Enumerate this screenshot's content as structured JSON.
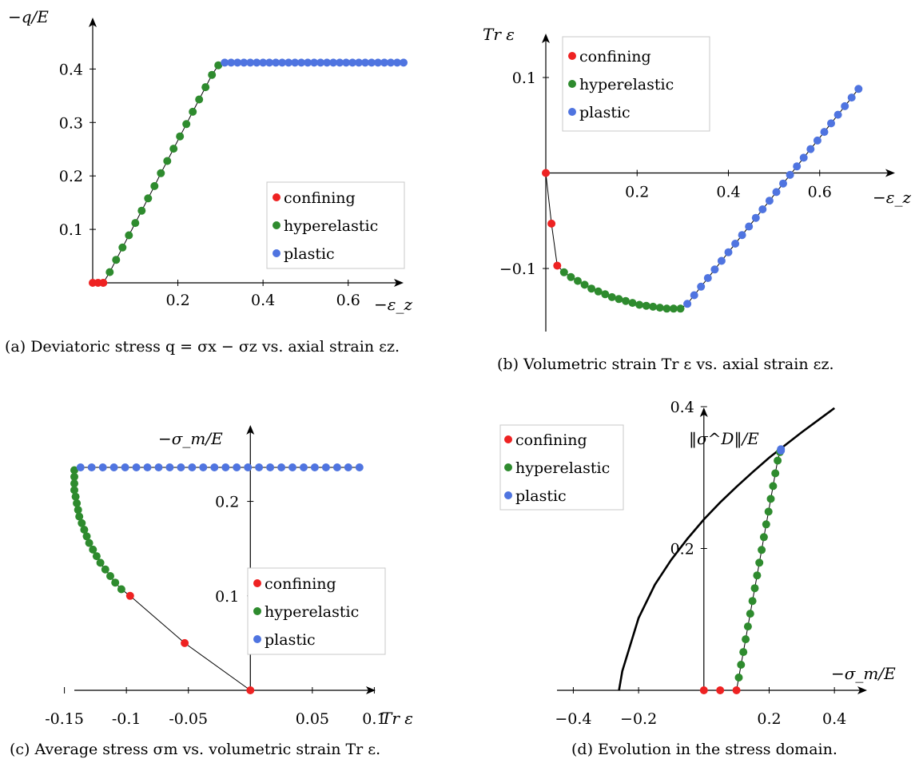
{
  "colors": {
    "confining": "#ee2222",
    "hyperelastic": "#2e8b2e",
    "plastic": "#4f74e0",
    "curve": "#000000"
  },
  "chart_data": [
    {
      "id": "a",
      "type": "scatter",
      "xlabel": "−ε_z",
      "ylabel": "−q/E",
      "xlim": [
        0,
        0.73
      ],
      "ylim": [
        0,
        0.42
      ],
      "xticks": [
        0.2,
        0.4,
        0.6
      ],
      "yticks": [
        0.1,
        0.2,
        0.3,
        0.4
      ],
      "xtick_labels": [
        "0.2",
        "0.4",
        "0.6"
      ],
      "ytick_labels": [
        "0.1",
        "0.2",
        "0.3",
        "0.4"
      ],
      "legend_position": "right",
      "caption": "(a) Deviatoric stress q = σx − σz vs. axial strain εz.",
      "series": [
        {
          "name": "confining",
          "color_key": "confining",
          "points": [
            [
              0,
              0
            ],
            [
              0.0125,
              0
            ],
            [
              0.025,
              0
            ]
          ]
        },
        {
          "name": "hyperelastic",
          "color_key": "hyperelastic",
          "points": [
            [
              0.04,
              0.02
            ],
            [
              0.055,
              0.043
            ],
            [
              0.07,
              0.066
            ],
            [
              0.085,
              0.089
            ],
            [
              0.1,
              0.112
            ],
            [
              0.115,
              0.135
            ],
            [
              0.13,
              0.158
            ],
            [
              0.145,
              0.181
            ],
            [
              0.16,
              0.205
            ],
            [
              0.175,
              0.228
            ],
            [
              0.19,
              0.251
            ],
            [
              0.205,
              0.274
            ],
            [
              0.22,
              0.297
            ],
            [
              0.235,
              0.32
            ],
            [
              0.25,
              0.343
            ],
            [
              0.265,
              0.366
            ],
            [
              0.28,
              0.389
            ],
            [
              0.295,
              0.407
            ]
          ]
        },
        {
          "name": "plastic",
          "color_key": "plastic",
          "points": [
            [
              0.31,
              0.412
            ],
            [
              0.325,
              0.412
            ],
            [
              0.34,
              0.412
            ],
            [
              0.355,
              0.412
            ],
            [
              0.37,
              0.412
            ],
            [
              0.385,
              0.412
            ],
            [
              0.4,
              0.412
            ],
            [
              0.415,
              0.412
            ],
            [
              0.43,
              0.412
            ],
            [
              0.445,
              0.412
            ],
            [
              0.46,
              0.412
            ],
            [
              0.475,
              0.412
            ],
            [
              0.49,
              0.412
            ],
            [
              0.505,
              0.412
            ],
            [
              0.52,
              0.412
            ],
            [
              0.535,
              0.412
            ],
            [
              0.55,
              0.412
            ],
            [
              0.565,
              0.412
            ],
            [
              0.58,
              0.412
            ],
            [
              0.595,
              0.412
            ],
            [
              0.61,
              0.412
            ],
            [
              0.625,
              0.412
            ],
            [
              0.64,
              0.412
            ],
            [
              0.655,
              0.412
            ],
            [
              0.67,
              0.412
            ],
            [
              0.685,
              0.412
            ],
            [
              0.7,
              0.412
            ],
            [
              0.715,
              0.412
            ],
            [
              0.73,
              0.412
            ]
          ]
        }
      ]
    },
    {
      "id": "b",
      "type": "scatter",
      "xlabel": "−ε_z",
      "ylabel": "Tr ε",
      "xlim": [
        0,
        0.73
      ],
      "ylim": [
        -0.156,
        0.1
      ],
      "xticks": [
        0.2,
        0.4,
        0.6
      ],
      "yticks": [
        -0.1,
        0.1
      ],
      "xtick_labels": [
        "0.2",
        "0.4",
        "0.6"
      ],
      "ytick_labels": [
        "−0.1",
        "0.1"
      ],
      "legend_position": "top-left",
      "caption": "(b) Volumetric strain Tr ε vs. axial strain εz.",
      "series": [
        {
          "name": "confining",
          "color_key": "confining",
          "points": [
            [
              0,
              0
            ],
            [
              0.0125,
              -0.053
            ],
            [
              0.025,
              -0.097
            ]
          ]
        },
        {
          "name": "hyperelastic",
          "color_key": "hyperelastic",
          "points": [
            [
              0.04,
              -0.104
            ],
            [
              0.055,
              -0.109
            ],
            [
              0.07,
              -0.113
            ],
            [
              0.085,
              -0.117
            ],
            [
              0.1,
              -0.121
            ],
            [
              0.115,
              -0.124
            ],
            [
              0.13,
              -0.127
            ],
            [
              0.145,
              -0.13
            ],
            [
              0.16,
              -0.132
            ],
            [
              0.175,
              -0.134
            ],
            [
              0.19,
              -0.136
            ],
            [
              0.205,
              -0.138
            ],
            [
              0.22,
              -0.139
            ],
            [
              0.235,
              -0.14
            ],
            [
              0.25,
              -0.141
            ],
            [
              0.265,
              -0.142
            ],
            [
              0.28,
              -0.142
            ],
            [
              0.295,
              -0.142
            ]
          ]
        },
        {
          "name": "plastic",
          "color_key": "plastic",
          "points": [
            [
              0.31,
              -0.137
            ],
            [
              0.325,
              -0.128
            ],
            [
              0.34,
              -0.119
            ],
            [
              0.355,
              -0.11
            ],
            [
              0.37,
              -0.101
            ],
            [
              0.385,
              -0.092
            ],
            [
              0.4,
              -0.083
            ],
            [
              0.415,
              -0.074
            ],
            [
              0.43,
              -0.065
            ],
            [
              0.445,
              -0.056
            ],
            [
              0.46,
              -0.047
            ],
            [
              0.475,
              -0.038
            ],
            [
              0.49,
              -0.029
            ],
            [
              0.505,
              -0.02
            ],
            [
              0.52,
              -0.011
            ],
            [
              0.535,
              -0.002
            ],
            [
              0.55,
              0.007
            ],
            [
              0.565,
              0.016
            ],
            [
              0.58,
              0.025
            ],
            [
              0.595,
              0.034
            ],
            [
              0.61,
              0.043
            ],
            [
              0.625,
              0.052
            ],
            [
              0.64,
              0.061
            ],
            [
              0.655,
              0.07
            ],
            [
              0.67,
              0.079
            ],
            [
              0.685,
              0.088
            ]
          ]
        }
      ]
    },
    {
      "id": "c",
      "type": "scatter",
      "xlabel": "Tr ε",
      "ylabel": "−σ_m/E",
      "xlim": [
        -0.142,
        0.092
      ],
      "ylim": [
        0,
        0.236
      ],
      "xticks": [
        -0.15,
        -0.1,
        -0.05,
        0.05,
        0.1
      ],
      "yticks": [
        0.1,
        0.2
      ],
      "xtick_labels": [
        "-0.15",
        "-0.1",
        "-0.05",
        "0.05",
        "0.1"
      ],
      "ytick_labels": [
        "0.1",
        "0.2"
      ],
      "legend_position": "bottom-right",
      "caption": "(c) Average stress σm vs. volumetric strain Tr ε.",
      "series": [
        {
          "name": "confining",
          "color_key": "confining",
          "points": [
            [
              0,
              0
            ],
            [
              -0.053,
              0.05
            ],
            [
              -0.097,
              0.1
            ]
          ]
        },
        {
          "name": "hyperelastic",
          "color_key": "hyperelastic",
          "points": [
            [
              -0.104,
              0.107
            ],
            [
              -0.109,
              0.114
            ],
            [
              -0.113,
              0.121
            ],
            [
              -0.117,
              0.128
            ],
            [
              -0.121,
              0.135
            ],
            [
              -0.124,
              0.142
            ],
            [
              -0.127,
              0.149
            ],
            [
              -0.13,
              0.156
            ],
            [
              -0.132,
              0.163
            ],
            [
              -0.134,
              0.17
            ],
            [
              -0.136,
              0.177
            ],
            [
              -0.138,
              0.184
            ],
            [
              -0.139,
              0.191
            ],
            [
              -0.14,
              0.198
            ],
            [
              -0.141,
              0.205
            ],
            [
              -0.142,
              0.212
            ],
            [
              -0.142,
              0.219
            ],
            [
              -0.142,
              0.226
            ],
            [
              -0.142,
              0.233
            ]
          ]
        },
        {
          "name": "plastic",
          "color_key": "plastic",
          "points": [
            [
              -0.137,
              0.236
            ],
            [
              -0.128,
              0.236
            ],
            [
              -0.119,
              0.236
            ],
            [
              -0.11,
              0.236
            ],
            [
              -0.101,
              0.236
            ],
            [
              -0.092,
              0.236
            ],
            [
              -0.083,
              0.236
            ],
            [
              -0.074,
              0.236
            ],
            [
              -0.065,
              0.236
            ],
            [
              -0.056,
              0.236
            ],
            [
              -0.047,
              0.236
            ],
            [
              -0.038,
              0.236
            ],
            [
              -0.029,
              0.236
            ],
            [
              -0.02,
              0.236
            ],
            [
              -0.011,
              0.236
            ],
            [
              -0.002,
              0.236
            ],
            [
              0.007,
              0.236
            ],
            [
              0.016,
              0.236
            ],
            [
              0.025,
              0.236
            ],
            [
              0.034,
              0.236
            ],
            [
              0.043,
              0.236
            ],
            [
              0.052,
              0.236
            ],
            [
              0.061,
              0.236
            ],
            [
              0.07,
              0.236
            ],
            [
              0.079,
              0.236
            ],
            [
              0.088,
              0.236
            ]
          ]
        }
      ]
    },
    {
      "id": "d",
      "type": "scatter",
      "xlabel": "−σ_m/E",
      "ylabel": "‖σ^D‖/E",
      "xlim": [
        -0.45,
        0.5
      ],
      "ylim": [
        0,
        0.4
      ],
      "xticks": [
        -0.4,
        -0.2,
        0.2,
        0.4
      ],
      "yticks": [
        0.2,
        0.4
      ],
      "xtick_labels": [
        "−0.4",
        "−0.2",
        "0.2",
        "0.4"
      ],
      "ytick_labels": [
        "0.2",
        "0.4"
      ],
      "legend_position": "top-left",
      "caption": "(d) Evolution in the stress domain.",
      "curve": {
        "points": [
          [
            -0.26,
            0
          ],
          [
            -0.25,
            0.027
          ],
          [
            -0.2,
            0.102
          ],
          [
            -0.15,
            0.149
          ],
          [
            -0.1,
            0.184
          ],
          [
            -0.05,
            0.214
          ],
          [
            0,
            0.241
          ],
          [
            0.05,
            0.265
          ],
          [
            0.1,
            0.287
          ],
          [
            0.15,
            0.308
          ],
          [
            0.2,
            0.328
          ],
          [
            0.25,
            0.346
          ],
          [
            0.3,
            0.364
          ],
          [
            0.35,
            0.381
          ],
          [
            0.4,
            0.398
          ]
        ]
      },
      "series": [
        {
          "name": "confining",
          "color_key": "confining",
          "points": [
            [
              0,
              0
            ],
            [
              0.05,
              0
            ],
            [
              0.1,
              0
            ]
          ]
        },
        {
          "name": "hyperelastic",
          "color_key": "hyperelastic",
          "points": [
            [
              0.107,
              0.018
            ],
            [
              0.114,
              0.036
            ],
            [
              0.121,
              0.054
            ],
            [
              0.128,
              0.072
            ],
            [
              0.135,
              0.09
            ],
            [
              0.142,
              0.108
            ],
            [
              0.149,
              0.126
            ],
            [
              0.156,
              0.144
            ],
            [
              0.163,
              0.162
            ],
            [
              0.17,
              0.18
            ],
            [
              0.177,
              0.198
            ],
            [
              0.184,
              0.216
            ],
            [
              0.191,
              0.234
            ],
            [
              0.198,
              0.252
            ],
            [
              0.205,
              0.27
            ],
            [
              0.212,
              0.288
            ],
            [
              0.219,
              0.306
            ],
            [
              0.226,
              0.324
            ],
            [
              0.233,
              0.336
            ]
          ]
        },
        {
          "name": "plastic",
          "color_key": "plastic",
          "points": [
            [
              0.236,
              0.338
            ],
            [
              0.236,
              0.34
            ]
          ]
        }
      ]
    }
  ]
}
